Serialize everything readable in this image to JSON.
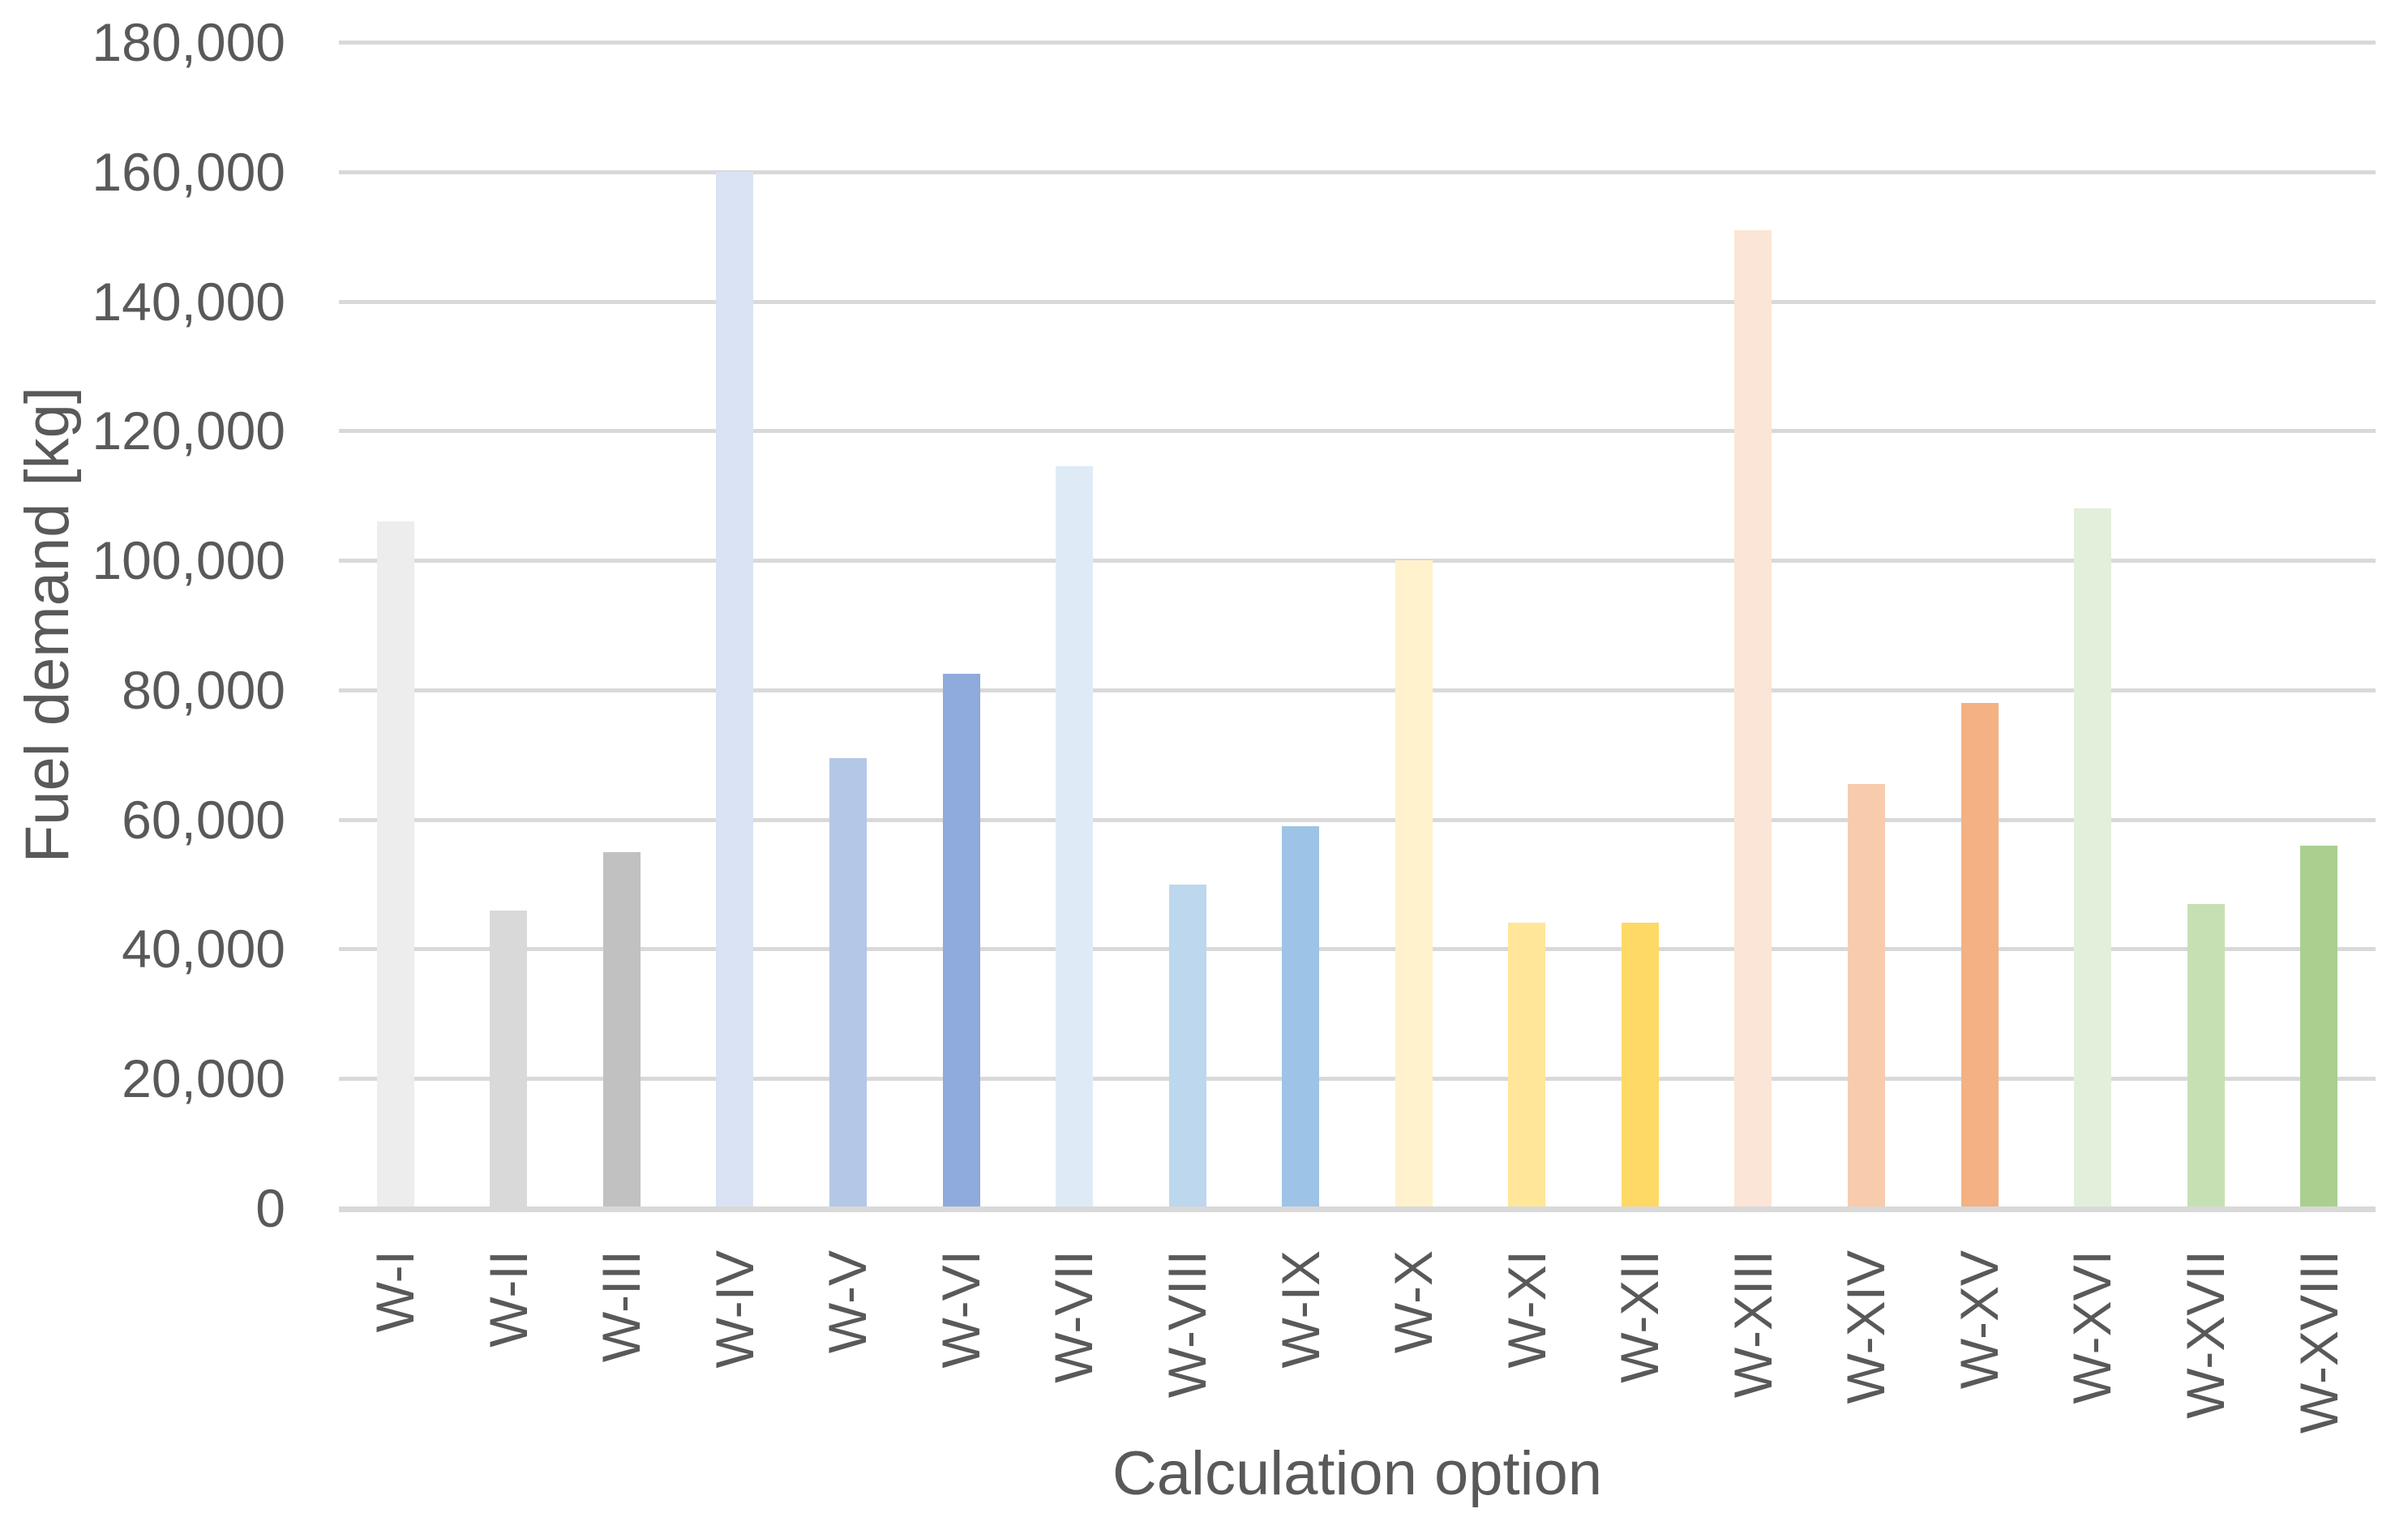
{
  "chart_data": {
    "type": "bar",
    "title": "",
    "xlabel": "Calculation option",
    "ylabel": "Fuel demand [kg]",
    "categories": [
      "W-I",
      "W-II",
      "W-III",
      "W-IV",
      "W-V",
      "W-VI",
      "W-VII",
      "W-VIII",
      "W-IX",
      "W-X",
      "W-XI",
      "W-XII",
      "W-XIII",
      "W-XIV",
      "W-XV",
      "W-XVI",
      "W-XVII",
      "W-XVIII"
    ],
    "values": [
      106000,
      46000,
      55000,
      160000,
      69500,
      82500,
      114500,
      50000,
      59000,
      100000,
      44000,
      44000,
      151000,
      65500,
      78000,
      108000,
      47000,
      56000
    ],
    "bar_colors": [
      "#EDEDED",
      "#D9D9D9",
      "#C1C1C1",
      "#DAE3F3",
      "#B4C7E7",
      "#8FAADC",
      "#DEEBF7",
      "#BDD7EE",
      "#9DC3E6",
      "#FFF2CC",
      "#FFE699",
      "#FFD966",
      "#FBE5D6",
      "#F8CBAD",
      "#F4B183",
      "#E2EFDA",
      "#C6E0B4",
      "#A9D08E"
    ],
    "ylim": [
      0,
      180000
    ],
    "ytick_step": 20000,
    "ytick_labels": [
      "0",
      "20,000",
      "40,000",
      "60,000",
      "80,000",
      "100,000",
      "120,000",
      "140,000",
      "160,000",
      "180,000"
    ],
    "grid": true,
    "legend": false,
    "colors": {
      "grid": "#D9D9D9",
      "axis": "#D9D9D9",
      "text": "#595959",
      "background": "#FFFFFF"
    }
  }
}
